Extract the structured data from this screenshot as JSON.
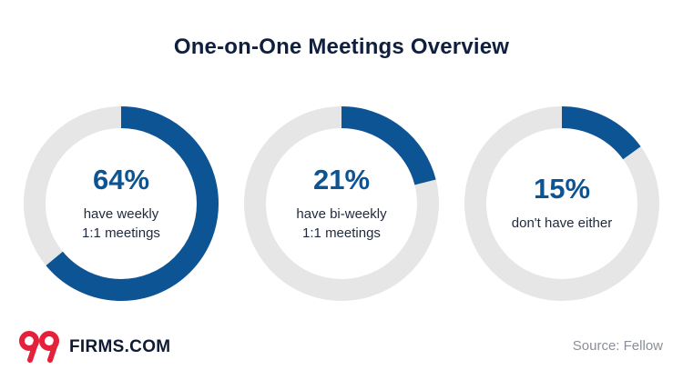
{
  "title": "One-on-One Meetings Overview",
  "chart_data": {
    "type": "pie",
    "subtype": "donut",
    "title": "One-on-One Meetings Overview",
    "colors": {
      "filled": "#0d5494",
      "track": "#e6e6e6"
    },
    "items": [
      {
        "value": 64,
        "pct_label": "64%",
        "line1": "have weekly",
        "line2": "1:1 meetings"
      },
      {
        "value": 21,
        "pct_label": "21%",
        "line1": "have bi-weekly",
        "line2": "1:1 meetings"
      },
      {
        "value": 15,
        "pct_label": "15%",
        "line1": "don't have either",
        "line2": ""
      }
    ]
  },
  "logo": {
    "text": "FIRMS.COM",
    "mark": "99",
    "accent_color": "#e5203a"
  },
  "source": "Source: Fellow"
}
